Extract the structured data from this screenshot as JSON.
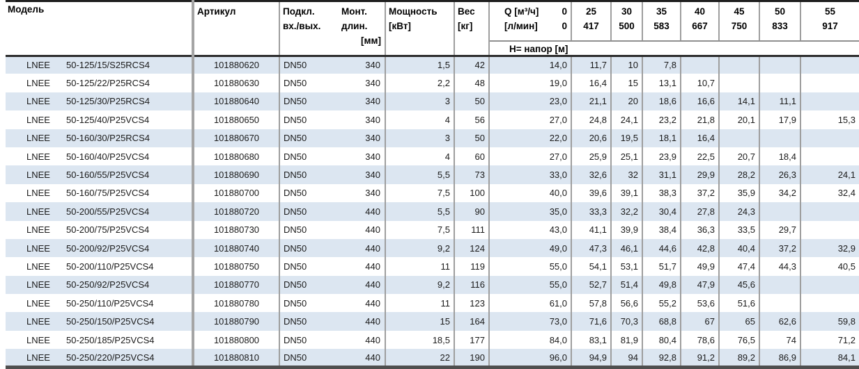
{
  "table": {
    "headers": {
      "model": "Модель",
      "article": "Артикул",
      "connection_line1": "Подкл.",
      "connection_line2": "вх./вых.",
      "mount_line1": "Монт.",
      "mount_line2": "длин.",
      "mount_line3": "[мм]",
      "power_line1": "Мощность",
      "power_line2": "[кВт]",
      "weight_line1": "Вес",
      "weight_line2": "[кг]",
      "q_row1_label": "Q [м³/ч]",
      "q_row1_value": "0",
      "q_row2_label": "[л/мин]",
      "q_row2_value": "0",
      "head_row_label": "H= напор [м]",
      "flow_columns": [
        {
          "m3h": "25",
          "lmin": "417"
        },
        {
          "m3h": "30",
          "lmin": "500"
        },
        {
          "m3h": "35",
          "lmin": "583"
        },
        {
          "m3h": "40",
          "lmin": "667"
        },
        {
          "m3h": "45",
          "lmin": "750"
        },
        {
          "m3h": "50",
          "lmin": "833"
        },
        {
          "m3h": "55",
          "lmin": "917"
        }
      ]
    },
    "rows": [
      {
        "brand": "LNEE",
        "model": "50-125/15/S25RCS4",
        "article": "101880620",
        "connection": "DN50",
        "length": "340",
        "power": "1,5",
        "weight": "42",
        "heads": [
          "14,0",
          "11,7",
          "10",
          "7,8",
          "",
          "",
          "",
          ""
        ]
      },
      {
        "brand": "LNEE",
        "model": "50-125/22/P25RCS4",
        "article": "101880630",
        "connection": "DN50",
        "length": "340",
        "power": "2,2",
        "weight": "48",
        "heads": [
          "19,0",
          "16,4",
          "15",
          "13,1",
          "10,7",
          "",
          "",
          ""
        ]
      },
      {
        "brand": "LNEE",
        "model": "50-125/30/P25RCS4",
        "article": "101880640",
        "connection": "DN50",
        "length": "340",
        "power": "3",
        "weight": "50",
        "heads": [
          "23,0",
          "21,1",
          "20",
          "18,6",
          "16,6",
          "14,1",
          "11,1",
          ""
        ]
      },
      {
        "brand": "LNEE",
        "model": "50-125/40/P25VCS4",
        "article": "101880650",
        "connection": "DN50",
        "length": "340",
        "power": "4",
        "weight": "56",
        "heads": [
          "27,0",
          "24,8",
          "24,1",
          "23,2",
          "21,8",
          "20,1",
          "17,9",
          "15,3"
        ]
      },
      {
        "brand": "LNEE",
        "model": "50-160/30/P25RCS4",
        "article": "101880670",
        "connection": "DN50",
        "length": "340",
        "power": "3",
        "weight": "50",
        "heads": [
          "22,0",
          "20,6",
          "19,5",
          "18,1",
          "16,4",
          "",
          "",
          ""
        ]
      },
      {
        "brand": "LNEE",
        "model": "50-160/40/P25VCS4",
        "article": "101880680",
        "connection": "DN50",
        "length": "340",
        "power": "4",
        "weight": "60",
        "heads": [
          "27,0",
          "25,9",
          "25,1",
          "23,9",
          "22,5",
          "20,7",
          "18,4",
          ""
        ]
      },
      {
        "brand": "LNEE",
        "model": "50-160/55/P25VCS4",
        "article": "101880690",
        "connection": "DN50",
        "length": "340",
        "power": "5,5",
        "weight": "73",
        "heads": [
          "33,0",
          "32,6",
          "32",
          "31,1",
          "29,9",
          "28,2",
          "26,3",
          "24,1"
        ]
      },
      {
        "brand": "LNEE",
        "model": "50-160/75/P25VCS4",
        "article": "101880700",
        "connection": "DN50",
        "length": "340",
        "power": "7,5",
        "weight": "100",
        "heads": [
          "40,0",
          "39,6",
          "39,1",
          "38,3",
          "37,2",
          "35,9",
          "34,2",
          "32,4"
        ]
      },
      {
        "brand": "LNEE",
        "model": "50-200/55/P25VCS4",
        "article": "101880720",
        "connection": "DN50",
        "length": "440",
        "power": "5,5",
        "weight": "90",
        "heads": [
          "35,0",
          "33,3",
          "32,2",
          "30,4",
          "27,8",
          "24,3",
          "",
          ""
        ]
      },
      {
        "brand": "LNEE",
        "model": "50-200/75/P25VCS4",
        "article": "101880730",
        "connection": "DN50",
        "length": "440",
        "power": "7,5",
        "weight": "111",
        "heads": [
          "43,0",
          "41,1",
          "39,9",
          "38,4",
          "36,3",
          "33,5",
          "29,7",
          ""
        ]
      },
      {
        "brand": "LNEE",
        "model": "50-200/92/P25VCS4",
        "article": "101880740",
        "connection": "DN50",
        "length": "440",
        "power": "9,2",
        "weight": "124",
        "heads": [
          "49,0",
          "47,3",
          "46,1",
          "44,6",
          "42,8",
          "40,4",
          "37,2",
          "32,9"
        ]
      },
      {
        "brand": "LNEE",
        "model": "50-200/110/P25VCS4",
        "article": "101880750",
        "connection": "DN50",
        "length": "440",
        "power": "11",
        "weight": "119",
        "heads": [
          "55,0",
          "54,1",
          "53,1",
          "51,7",
          "49,9",
          "47,4",
          "44,3",
          "40,5"
        ]
      },
      {
        "brand": "LNEE",
        "model": "50-250/92/P25VCS4",
        "article": "101880770",
        "connection": "DN50",
        "length": "440",
        "power": "9,2",
        "weight": "116",
        "heads": [
          "55,0",
          "52,7",
          "51,4",
          "49,8",
          "47,9",
          "45,6",
          "",
          ""
        ]
      },
      {
        "brand": "LNEE",
        "model": "50-250/110/P25VCS4",
        "article": "101880780",
        "connection": "DN50",
        "length": "440",
        "power": "11",
        "weight": "123",
        "heads": [
          "61,0",
          "57,8",
          "56,6",
          "55,2",
          "53,6",
          "51,6",
          "",
          ""
        ]
      },
      {
        "brand": "LNEE",
        "model": "50-250/150/P25VCS4",
        "article": "101880790",
        "connection": "DN50",
        "length": "440",
        "power": "15",
        "weight": "164",
        "heads": [
          "73,0",
          "71,6",
          "70,3",
          "68,8",
          "67",
          "65",
          "62,6",
          "59,8"
        ]
      },
      {
        "brand": "LNEE",
        "model": "50-250/185/P25VCS4",
        "article": "101880800",
        "connection": "DN50",
        "length": "440",
        "power": "18,5",
        "weight": "177",
        "heads": [
          "84,0",
          "83,1",
          "81,9",
          "80,4",
          "78,6",
          "76,5",
          "74",
          "71,2"
        ]
      },
      {
        "brand": "LNEE",
        "model": "50-250/220/P25VCS4",
        "article": "101880810",
        "connection": "DN50",
        "length": "440",
        "power": "22",
        "weight": "190",
        "heads": [
          "96,0",
          "94,9",
          "94",
          "92,8",
          "91,2",
          "89,2",
          "86,9",
          "84,1"
        ]
      }
    ]
  },
  "colors": {
    "row_alt_background": "#dce6f1",
    "grid_line": "#9e9e9e",
    "model_divider": "#a5a5a5",
    "header_rule": "#2b2b2b",
    "table_top_border": "#1f1f1f",
    "table_bottom_border": "#4f4f4f",
    "text": "#1a1a1a"
  }
}
